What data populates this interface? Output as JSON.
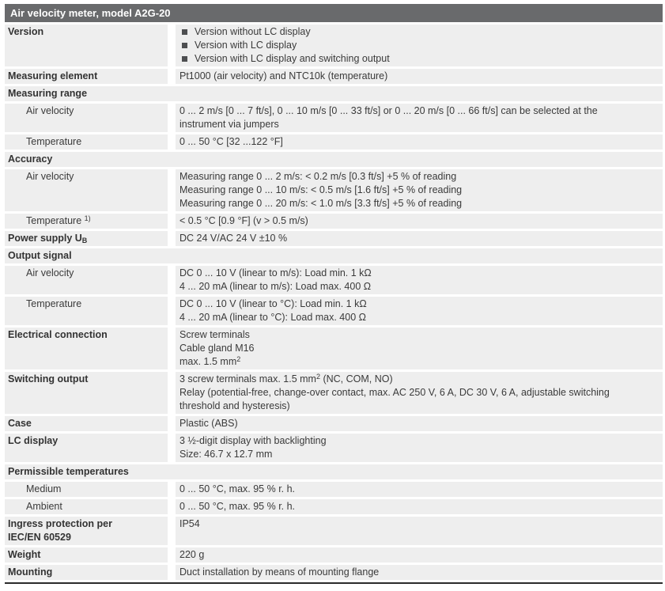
{
  "colors": {
    "header_bg": "#696a6c",
    "header_text": "#ffffff",
    "row_bg": "#eeeeee",
    "text": "#3a3a3a",
    "label_text": "#333333",
    "bullet": "#4d4e50",
    "rule": "#2b2b2b",
    "page_bg": "#ffffff"
  },
  "table": {
    "title": "Air velocity meter, model A2G-20",
    "rows": [
      {
        "kind": "data",
        "label": "Version",
        "bullets": [
          "Version without LC display",
          "Version with LC display",
          "Version with LC display and switching output"
        ]
      },
      {
        "kind": "data",
        "label": "Measuring element",
        "lines": [
          "Pt1000 (air velocity) and NTC10k (temperature)"
        ]
      },
      {
        "kind": "section",
        "label": "Measuring range"
      },
      {
        "kind": "data",
        "indent": true,
        "label": "Air velocity",
        "lines": [
          "0 ... 2 m/s [0 ... 7 ft/s], 0 ... 10 m/s [0 ... 33 ft/s] or 0 ... 20 m/s [0 ... 66 ft/s] can be selected at the",
          "instrument via jumpers"
        ],
        "wrap": true
      },
      {
        "kind": "data",
        "indent": true,
        "label": "Temperature",
        "lines": [
          "0 ... 50 °C [32 ...122 °F]"
        ]
      },
      {
        "kind": "section",
        "label": "Accuracy"
      },
      {
        "kind": "data",
        "indent": true,
        "label": "Air velocity",
        "lines": [
          "Measuring range 0 ... 2 m/s: < 0.2 m/s [0.3 ft/s] +5 % of reading",
          "Measuring range 0 ... 10 m/s: < 0.5 m/s [1.6 ft/s] +5 % of reading",
          "Measuring range 0 ... 20 m/s: < 1.0 m/s [3.3 ft/s] +5 % of reading"
        ]
      },
      {
        "kind": "data",
        "indent": true,
        "label": [
          "Temperature ",
          {
            "t": "1)",
            "s": "sup"
          }
        ],
        "lines": [
          "< 0.5 °C [0.9 °F] (v > 0.5 m/s)"
        ]
      },
      {
        "kind": "data",
        "label": [
          "Power supply U",
          {
            "t": "B",
            "s": "sub"
          }
        ],
        "lines": [
          "DC 24 V/AC 24 V ±10 %"
        ]
      },
      {
        "kind": "section",
        "label": "Output signal"
      },
      {
        "kind": "data",
        "indent": true,
        "label": "Air velocity",
        "lines": [
          "DC 0 ... 10 V (linear to m/s): Load min. 1 kΩ",
          "4 ... 20 mA (linear to m/s): Load max. 400 Ω"
        ]
      },
      {
        "kind": "data",
        "indent": true,
        "label": "Temperature",
        "lines": [
          "DC 0 ... 10 V (linear to °C): Load min. 1 kΩ",
          "4 ... 20 mA (linear to °C): Load max. 400 Ω"
        ]
      },
      {
        "kind": "data",
        "label": "Electrical connection",
        "lines": [
          "Screw terminals",
          "Cable gland M16",
          [
            "max. 1.5 mm",
            {
              "t": "2",
              "s": "sup"
            }
          ]
        ]
      },
      {
        "kind": "data",
        "label": "Switching output",
        "lines": [
          [
            "3 screw terminals max. 1.5 mm",
            {
              "t": "2",
              "s": "sup"
            },
            " (NC, COM, NO)"
          ],
          "Relay (potential-free, change-over contact, max. AC 250 V, 6 A, DC 30 V, 6 A, adjustable switching",
          "threshold and hysteresis)"
        ],
        "wrap": true
      },
      {
        "kind": "data",
        "label": "Case",
        "lines": [
          "Plastic (ABS)"
        ]
      },
      {
        "kind": "data",
        "label": "LC display",
        "lines": [
          "3 ½-digit display with backlighting",
          "Size: 46.7 x 12.7 mm"
        ]
      },
      {
        "kind": "section",
        "label": "Permissible temperatures"
      },
      {
        "kind": "data",
        "indent": true,
        "label": "Medium",
        "lines": [
          "0 ... 50 °C, max. 95 % r. h."
        ]
      },
      {
        "kind": "data",
        "indent": true,
        "label": "Ambient",
        "lines": [
          "0 ... 50 °C, max. 95 % r. h."
        ]
      },
      {
        "kind": "data",
        "label": "Ingress protection per\nIEC/EN 60529",
        "lines": [
          "IP54"
        ]
      },
      {
        "kind": "data",
        "label": "Weight",
        "lines": [
          "220 g"
        ]
      },
      {
        "kind": "data",
        "label": "Mounting",
        "lines": [
          "Duct installation by means of mounting flange"
        ]
      }
    ]
  }
}
